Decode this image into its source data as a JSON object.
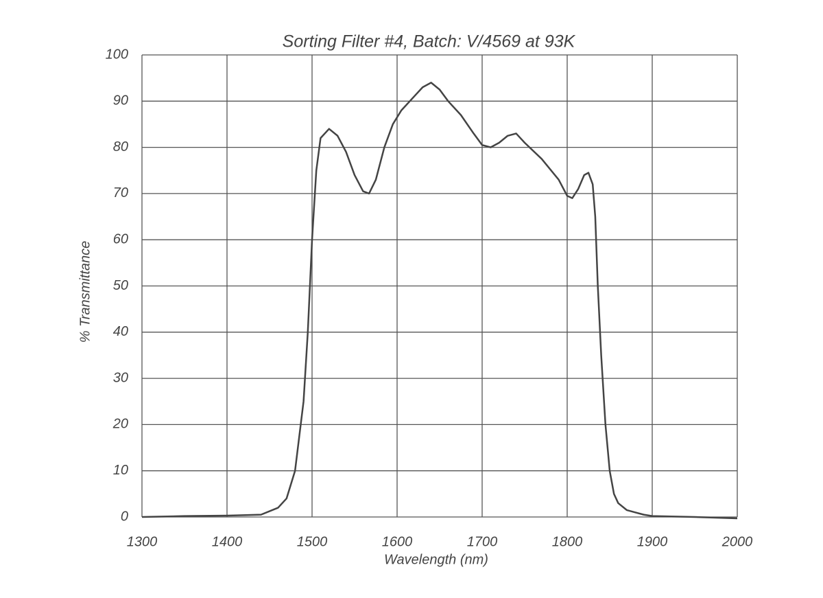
{
  "chart_data": {
    "type": "line",
    "title": "Sorting Filter #4, Batch: V/4569  at 93K",
    "x_label": "Wavelength (nm)",
    "y_label": "% Transmittance",
    "x": [
      1300,
      1350,
      1400,
      1440,
      1460,
      1470,
      1480,
      1490,
      1495,
      1500,
      1505,
      1510,
      1520,
      1530,
      1540,
      1550,
      1560,
      1567,
      1575,
      1585,
      1595,
      1605,
      1620,
      1630,
      1640,
      1650,
      1660,
      1675,
      1690,
      1700,
      1710,
      1720,
      1730,
      1740,
      1750,
      1770,
      1790,
      1800,
      1806,
      1813,
      1820,
      1825,
      1830,
      1833,
      1836,
      1840,
      1845,
      1850,
      1855,
      1860,
      1870,
      1880,
      1890,
      1900,
      1950,
      2000
    ],
    "series": [
      {
        "name": "Transmittance",
        "color": "#444444",
        "values": [
          0,
          0.2,
          0.3,
          0.5,
          2,
          4,
          10,
          25,
          40,
          60,
          75,
          82,
          84,
          82.5,
          79,
          74,
          70.5,
          70,
          73,
          80,
          85,
          88,
          91,
          93,
          94,
          92.5,
          90,
          87,
          83,
          80.5,
          80,
          81,
          82.5,
          83,
          81,
          77.5,
          73,
          69.5,
          69,
          71,
          74,
          74.5,
          72,
          65,
          50,
          35,
          20,
          10,
          5,
          3,
          1.5,
          1,
          0.5,
          0.2,
          0,
          -0.3
        ]
      }
    ],
    "xlim": [
      1300,
      2000
    ],
    "ylim": [
      0,
      100
    ],
    "xticks": [
      1300,
      1400,
      1500,
      1600,
      1700,
      1800,
      1900,
      2000
    ],
    "yticks": [
      0,
      10,
      20,
      30,
      40,
      50,
      60,
      70,
      80,
      90,
      100
    ],
    "grid": true
  }
}
